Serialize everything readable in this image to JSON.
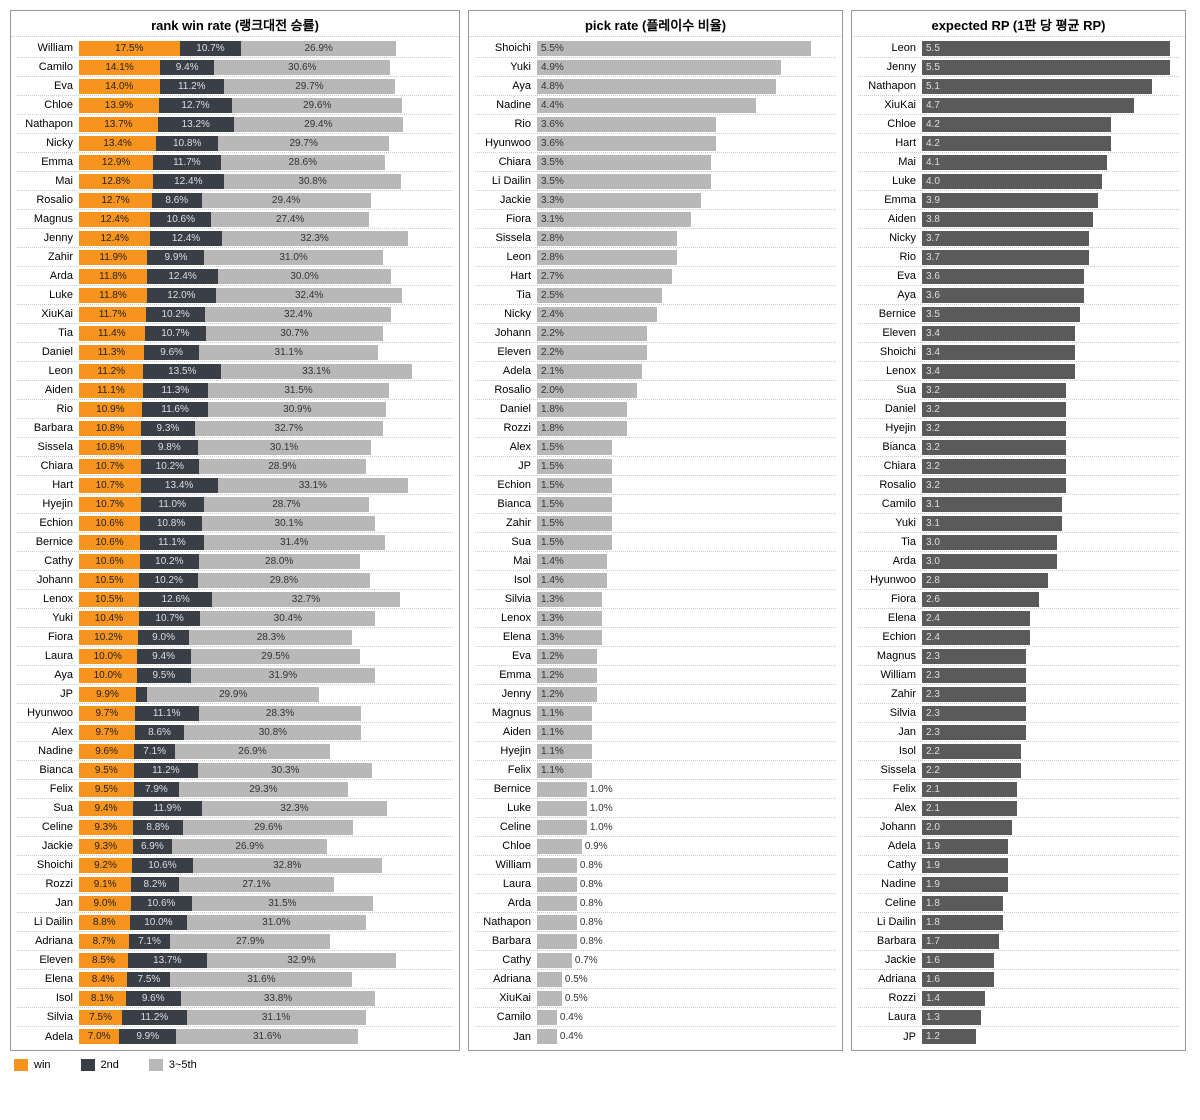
{
  "colors": {
    "win": "#f7941d",
    "second": "#3a3f47",
    "three_to_five": "#b8b8b8",
    "rp": "#5a5a5a",
    "border": "#999999",
    "grid": "#cccccc",
    "background": "#ffffff"
  },
  "typography": {
    "title_fontsize": 13,
    "label_fontsize": 11,
    "value_fontsize": 10,
    "font_family": "Arial"
  },
  "legend": {
    "win": "win",
    "second": "2nd",
    "three_to_five": "3~5th",
    "swatch_colors": {
      "win": "#f7941d",
      "second": "#3a3f47",
      "three_to_five": "#b8b8b8"
    }
  },
  "panels": {
    "winrate": {
      "title": "rank win rate (랭크대전 승률)",
      "type": "stacked-bar-horizontal",
      "max_percent": 65,
      "segments": [
        "win",
        "second",
        "three_to_five"
      ],
      "rows": [
        {
          "name": "William",
          "win": 17.5,
          "second": 10.7,
          "three": 26.9
        },
        {
          "name": "Camilo",
          "win": 14.1,
          "second": 9.4,
          "three": 30.6
        },
        {
          "name": "Eva",
          "win": 14.0,
          "second": 11.2,
          "three": 29.7
        },
        {
          "name": "Chloe",
          "win": 13.9,
          "second": 12.7,
          "three": 29.6
        },
        {
          "name": "Nathapon",
          "win": 13.7,
          "second": 13.2,
          "three": 29.4
        },
        {
          "name": "Nicky",
          "win": 13.4,
          "second": 10.8,
          "three": 29.7
        },
        {
          "name": "Emma",
          "win": 12.9,
          "second": 11.7,
          "three": 28.6
        },
        {
          "name": "Mai",
          "win": 12.8,
          "second": 12.4,
          "three": 30.8
        },
        {
          "name": "Rosalio",
          "win": 12.7,
          "second": 8.6,
          "three": 29.4
        },
        {
          "name": "Magnus",
          "win": 12.4,
          "second": 10.6,
          "three": 27.4
        },
        {
          "name": "Jenny",
          "win": 12.4,
          "second": 12.4,
          "three": 32.3
        },
        {
          "name": "Zahir",
          "win": 11.9,
          "second": 9.9,
          "three": 31.0
        },
        {
          "name": "Arda",
          "win": 11.8,
          "second": 12.4,
          "three": 30.0
        },
        {
          "name": "Luke",
          "win": 11.8,
          "second": 12.0,
          "three": 32.4
        },
        {
          "name": "XiuKai",
          "win": 11.7,
          "second": 10.2,
          "three": 32.4
        },
        {
          "name": "Tia",
          "win": 11.4,
          "second": 10.7,
          "three": 30.7
        },
        {
          "name": "Daniel",
          "win": 11.3,
          "second": 9.6,
          "three": 31.1
        },
        {
          "name": "Leon",
          "win": 11.2,
          "second": 13.5,
          "three": 33.1
        },
        {
          "name": "Aiden",
          "win": 11.1,
          "second": 11.3,
          "three": 31.5
        },
        {
          "name": "Rio",
          "win": 10.9,
          "second": 11.6,
          "three": 30.9
        },
        {
          "name": "Barbara",
          "win": 10.8,
          "second": 9.3,
          "three": 32.7
        },
        {
          "name": "Sissela",
          "win": 10.8,
          "second": 9.8,
          "three": 30.1
        },
        {
          "name": "Chiara",
          "win": 10.7,
          "second": 10.2,
          "three": 28.9
        },
        {
          "name": "Hart",
          "win": 10.7,
          "second": 13.4,
          "three": 33.1
        },
        {
          "name": "Hyejin",
          "win": 10.7,
          "second": 11.0,
          "three": 28.7
        },
        {
          "name": "Echion",
          "win": 10.6,
          "second": 10.8,
          "three": 30.1
        },
        {
          "name": "Bernice",
          "win": 10.6,
          "second": 11.1,
          "three": 31.4
        },
        {
          "name": "Cathy",
          "win": 10.6,
          "second": 10.2,
          "three": 28.0
        },
        {
          "name": "Johann",
          "win": 10.5,
          "second": 10.2,
          "three": 29.8
        },
        {
          "name": "Lenox",
          "win": 10.5,
          "second": 12.6,
          "three": 32.7
        },
        {
          "name": "Yuki",
          "win": 10.4,
          "second": 10.7,
          "three": 30.4
        },
        {
          "name": "Fiora",
          "win": 10.2,
          "second": 9.0,
          "three": 28.3
        },
        {
          "name": "Laura",
          "win": 10.0,
          "second": 9.4,
          "three": 29.5
        },
        {
          "name": "Aya",
          "win": 10.0,
          "second": 9.5,
          "three": 31.9
        },
        {
          "name": "JP",
          "win": 9.9,
          "second": null,
          "three": 29.9
        },
        {
          "name": "Hyunwoo",
          "win": 9.7,
          "second": 11.1,
          "three": 28.3
        },
        {
          "name": "Alex",
          "win": 9.7,
          "second": 8.6,
          "three": 30.8
        },
        {
          "name": "Nadine",
          "win": 9.6,
          "second": 7.1,
          "three": 26.9
        },
        {
          "name": "Bianca",
          "win": 9.5,
          "second": 11.2,
          "three": 30.3
        },
        {
          "name": "Felix",
          "win": 9.5,
          "second": 7.9,
          "three": 29.3
        },
        {
          "name": "Sua",
          "win": 9.4,
          "second": 11.9,
          "three": 32.3
        },
        {
          "name": "Celine",
          "win": 9.3,
          "second": 8.8,
          "three": 29.6
        },
        {
          "name": "Jackie",
          "win": 9.3,
          "second": 6.9,
          "three": 26.9
        },
        {
          "name": "Shoichi",
          "win": 9.2,
          "second": 10.6,
          "three": 32.8
        },
        {
          "name": "Rozzi",
          "win": 9.1,
          "second": 8.2,
          "three": 27.1
        },
        {
          "name": "Jan",
          "win": 9.0,
          "second": 10.6,
          "three": 31.5
        },
        {
          "name": "Li Dailin",
          "win": 8.8,
          "second": 10.0,
          "three": 31.0
        },
        {
          "name": "Adriana",
          "win": 8.7,
          "second": 7.1,
          "three": 27.9
        },
        {
          "name": "Eleven",
          "win": 8.5,
          "second": 13.7,
          "three": 32.9
        },
        {
          "name": "Elena",
          "win": 8.4,
          "second": 7.5,
          "three": 31.6
        },
        {
          "name": "Isol",
          "win": 8.1,
          "second": 9.6,
          "three": 33.8
        },
        {
          "name": "Silvia",
          "win": 7.5,
          "second": 11.2,
          "three": 31.1
        },
        {
          "name": "Adela",
          "win": 7.0,
          "second": 9.9,
          "three": 31.6
        }
      ]
    },
    "pickrate": {
      "title": "pick rate (플레이수 비율)",
      "type": "bar-horizontal",
      "max_percent": 6.0,
      "bar_color": "#b8b8b8",
      "rows": [
        {
          "name": "Shoichi",
          "v": 5.5
        },
        {
          "name": "Yuki",
          "v": 4.9
        },
        {
          "name": "Aya",
          "v": 4.8
        },
        {
          "name": "Nadine",
          "v": 4.4
        },
        {
          "name": "Rio",
          "v": 3.6
        },
        {
          "name": "Hyunwoo",
          "v": 3.6
        },
        {
          "name": "Chiara",
          "v": 3.5
        },
        {
          "name": "Li Dailin",
          "v": 3.5
        },
        {
          "name": "Jackie",
          "v": 3.3
        },
        {
          "name": "Fiora",
          "v": 3.1
        },
        {
          "name": "Sissela",
          "v": 2.8
        },
        {
          "name": "Leon",
          "v": 2.8
        },
        {
          "name": "Hart",
          "v": 2.7
        },
        {
          "name": "Tia",
          "v": 2.5
        },
        {
          "name": "Nicky",
          "v": 2.4
        },
        {
          "name": "Johann",
          "v": 2.2
        },
        {
          "name": "Eleven",
          "v": 2.2
        },
        {
          "name": "Adela",
          "v": 2.1
        },
        {
          "name": "Rosalio",
          "v": 2.0
        },
        {
          "name": "Daniel",
          "v": 1.8
        },
        {
          "name": "Rozzi",
          "v": 1.8
        },
        {
          "name": "Alex",
          "v": 1.5
        },
        {
          "name": "JP",
          "v": 1.5
        },
        {
          "name": "Echion",
          "v": 1.5
        },
        {
          "name": "Bianca",
          "v": 1.5
        },
        {
          "name": "Zahir",
          "v": 1.5
        },
        {
          "name": "Sua",
          "v": 1.5
        },
        {
          "name": "Mai",
          "v": 1.4
        },
        {
          "name": "Isol",
          "v": 1.4
        },
        {
          "name": "Silvia",
          "v": 1.3
        },
        {
          "name": "Lenox",
          "v": 1.3
        },
        {
          "name": "Elena",
          "v": 1.3
        },
        {
          "name": "Eva",
          "v": 1.2
        },
        {
          "name": "Emma",
          "v": 1.2
        },
        {
          "name": "Jenny",
          "v": 1.2
        },
        {
          "name": "Magnus",
          "v": 1.1
        },
        {
          "name": "Aiden",
          "v": 1.1
        },
        {
          "name": "Hyejin",
          "v": 1.1
        },
        {
          "name": "Felix",
          "v": 1.1
        },
        {
          "name": "Bernice",
          "v": 1.0
        },
        {
          "name": "Luke",
          "v": 1.0
        },
        {
          "name": "Celine",
          "v": 1.0
        },
        {
          "name": "Chloe",
          "v": 0.9
        },
        {
          "name": "William",
          "v": 0.8
        },
        {
          "name": "Laura",
          "v": 0.8
        },
        {
          "name": "Arda",
          "v": 0.8
        },
        {
          "name": "Nathapon",
          "v": 0.8
        },
        {
          "name": "Barbara",
          "v": 0.8
        },
        {
          "name": "Cathy",
          "v": 0.7
        },
        {
          "name": "Adriana",
          "v": 0.5
        },
        {
          "name": "XiuKai",
          "v": 0.5
        },
        {
          "name": "Camilo",
          "v": 0.4
        },
        {
          "name": "Jan",
          "v": 0.4
        }
      ]
    },
    "rp": {
      "title": "expected RP (1판 당 평균 RP)",
      "type": "bar-horizontal",
      "max_value": 5.7,
      "bar_color": "#5a5a5a",
      "rows": [
        {
          "name": "Leon",
          "v": 5.5
        },
        {
          "name": "Jenny",
          "v": 5.5
        },
        {
          "name": "Nathapon",
          "v": 5.1
        },
        {
          "name": "XiuKai",
          "v": 4.7
        },
        {
          "name": "Chloe",
          "v": 4.2
        },
        {
          "name": "Hart",
          "v": 4.2
        },
        {
          "name": "Mai",
          "v": 4.1
        },
        {
          "name": "Luke",
          "v": 4.0
        },
        {
          "name": "Emma",
          "v": 3.9
        },
        {
          "name": "Aiden",
          "v": 3.8
        },
        {
          "name": "Nicky",
          "v": 3.7
        },
        {
          "name": "Rio",
          "v": 3.7
        },
        {
          "name": "Eva",
          "v": 3.6
        },
        {
          "name": "Aya",
          "v": 3.6
        },
        {
          "name": "Bernice",
          "v": 3.5
        },
        {
          "name": "Eleven",
          "v": 3.4
        },
        {
          "name": "Shoichi",
          "v": 3.4
        },
        {
          "name": "Lenox",
          "v": 3.4
        },
        {
          "name": "Sua",
          "v": 3.2
        },
        {
          "name": "Daniel",
          "v": 3.2
        },
        {
          "name": "Hyejin",
          "v": 3.2
        },
        {
          "name": "Bianca",
          "v": 3.2
        },
        {
          "name": "Chiara",
          "v": 3.2
        },
        {
          "name": "Rosalio",
          "v": 3.2
        },
        {
          "name": "Camilo",
          "v": 3.1
        },
        {
          "name": "Yuki",
          "v": 3.1
        },
        {
          "name": "Tia",
          "v": 3.0
        },
        {
          "name": "Arda",
          "v": 3.0
        },
        {
          "name": "Hyunwoo",
          "v": 2.8
        },
        {
          "name": "Fiora",
          "v": 2.6
        },
        {
          "name": "Elena",
          "v": 2.4
        },
        {
          "name": "Echion",
          "v": 2.4
        },
        {
          "name": "Magnus",
          "v": 2.3
        },
        {
          "name": "William",
          "v": 2.3
        },
        {
          "name": "Zahir",
          "v": 2.3
        },
        {
          "name": "Silvia",
          "v": 2.3
        },
        {
          "name": "Jan",
          "v": 2.3
        },
        {
          "name": "Isol",
          "v": 2.2
        },
        {
          "name": "Sissela",
          "v": 2.2
        },
        {
          "name": "Felix",
          "v": 2.1
        },
        {
          "name": "Alex",
          "v": 2.1
        },
        {
          "name": "Johann",
          "v": 2.0
        },
        {
          "name": "Adela",
          "v": 1.9
        },
        {
          "name": "Cathy",
          "v": 1.9
        },
        {
          "name": "Nadine",
          "v": 1.9
        },
        {
          "name": "Celine",
          "v": 1.8
        },
        {
          "name": "Li Dailin",
          "v": 1.8
        },
        {
          "name": "Barbara",
          "v": 1.7
        },
        {
          "name": "Jackie",
          "v": 1.6
        },
        {
          "name": "Adriana",
          "v": 1.6
        },
        {
          "name": "Rozzi",
          "v": 1.4
        },
        {
          "name": "Laura",
          "v": 1.3
        },
        {
          "name": "JP",
          "v": 1.2
        }
      ]
    }
  }
}
